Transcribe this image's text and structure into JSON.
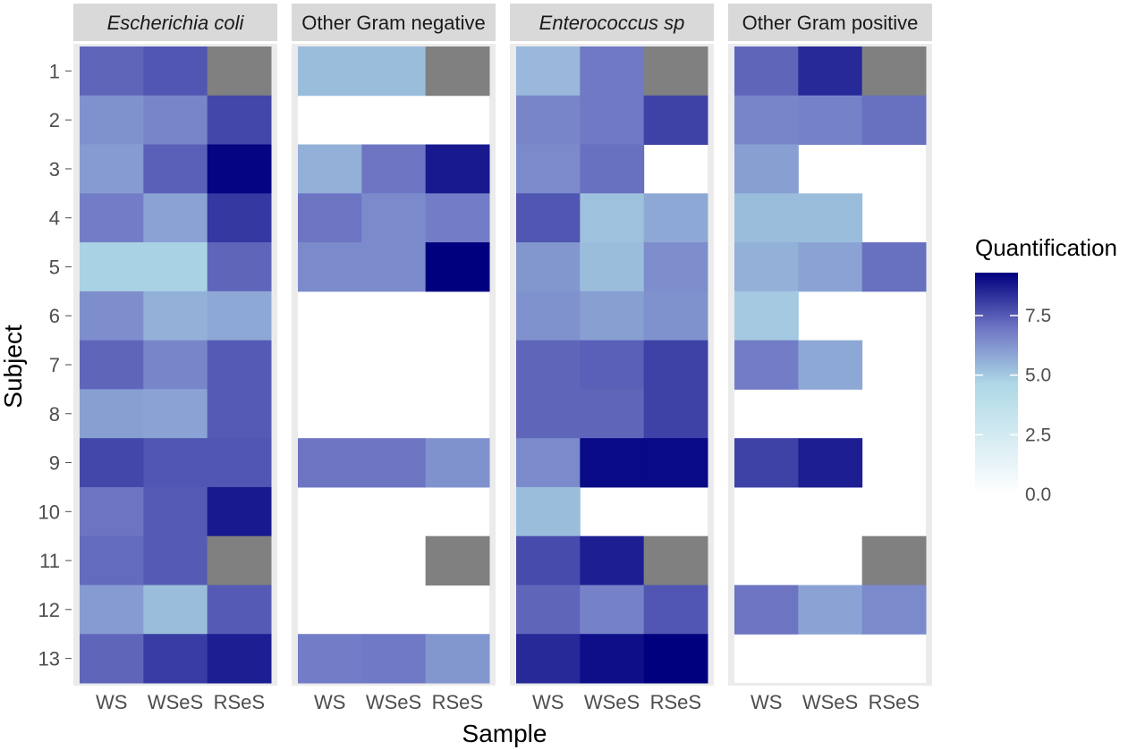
{
  "chart_data": {
    "type": "heatmap",
    "xlabel": "Sample",
    "ylabel": "Subject",
    "x_categories": [
      "WS",
      "WSeS",
      "RSeS"
    ],
    "y_categories": [
      "1",
      "2",
      "3",
      "4",
      "5",
      "6",
      "7",
      "8",
      "9",
      "10",
      "11",
      "12",
      "13"
    ],
    "legend": {
      "title": "Quantification",
      "placement": "right",
      "min": 0,
      "max": 9.3,
      "ticks": [
        "0.0",
        "2.5",
        "5.0",
        "7.5"
      ],
      "tick_values": [
        0,
        2.5,
        5.0,
        7.5
      ],
      "colors": {
        "low": "#ffffff",
        "mid": "#add8e6",
        "high": "#00007f"
      },
      "na_color": "#808080"
    },
    "facets": [
      {
        "name": "Escherichia coli",
        "italic": true,
        "values": [
          [
            7.3,
            7.6,
            "NA"
          ],
          [
            6.3,
            6.6,
            7.9
          ],
          [
            6.1,
            7.4,
            9.2
          ],
          [
            6.8,
            5.9,
            8.2
          ],
          [
            4.8,
            4.8,
            7.3
          ],
          [
            6.4,
            5.6,
            5.8
          ],
          [
            7.3,
            6.6,
            7.5
          ],
          [
            6.0,
            5.9,
            7.5
          ],
          [
            7.9,
            7.6,
            7.6
          ],
          [
            7.0,
            7.5,
            8.8
          ],
          [
            7.2,
            7.5,
            "NA"
          ],
          [
            6.1,
            5.3,
            7.5
          ],
          [
            7.3,
            8.1,
            8.7
          ]
        ]
      },
      {
        "name": "Other Gram negative",
        "italic": false,
        "values": [
          [
            5.3,
            5.3,
            "NA"
          ],
          [
            null,
            null,
            null
          ],
          [
            5.6,
            7.0,
            8.8
          ],
          [
            7.0,
            6.5,
            6.8
          ],
          [
            6.5,
            6.5,
            9.3
          ],
          [
            null,
            null,
            null
          ],
          [
            null,
            null,
            null
          ],
          [
            null,
            null,
            null
          ],
          [
            7.0,
            7.0,
            6.3
          ],
          [
            null,
            null,
            null
          ],
          [
            null,
            null,
            "NA"
          ],
          [
            null,
            null,
            null
          ],
          [
            6.8,
            6.9,
            6.2
          ]
        ]
      },
      {
        "name": "Enterococcus sp",
        "italic": true,
        "values": [
          [
            5.4,
            6.9,
            "NA"
          ],
          [
            6.6,
            6.9,
            8.0
          ],
          [
            6.5,
            7.1,
            null
          ],
          [
            7.6,
            5.2,
            5.8
          ],
          [
            6.2,
            5.3,
            6.4
          ],
          [
            6.3,
            6.0,
            6.3
          ],
          [
            7.3,
            7.4,
            8.0
          ],
          [
            7.3,
            7.3,
            8.0
          ],
          [
            6.5,
            9.1,
            9.1
          ],
          [
            5.3,
            null,
            null
          ],
          [
            7.8,
            8.7,
            "NA"
          ],
          [
            7.3,
            6.7,
            7.6
          ],
          [
            8.5,
            9.0,
            9.3
          ]
        ]
      },
      {
        "name": "Other Gram positive",
        "italic": false,
        "values": [
          [
            7.3,
            8.5,
            "NA"
          ],
          [
            6.6,
            6.7,
            7.1
          ],
          [
            6.0,
            null,
            null
          ],
          [
            5.3,
            5.3,
            null
          ],
          [
            5.6,
            5.9,
            7.1
          ],
          [
            5.0,
            null,
            null
          ],
          [
            6.8,
            5.8,
            null
          ],
          [
            null,
            null,
            null
          ],
          [
            8.0,
            8.7,
            null
          ],
          [
            null,
            null,
            null
          ],
          [
            null,
            null,
            "NA"
          ],
          [
            7.0,
            5.9,
            6.5
          ],
          [
            null,
            null,
            null
          ]
        ]
      }
    ]
  }
}
